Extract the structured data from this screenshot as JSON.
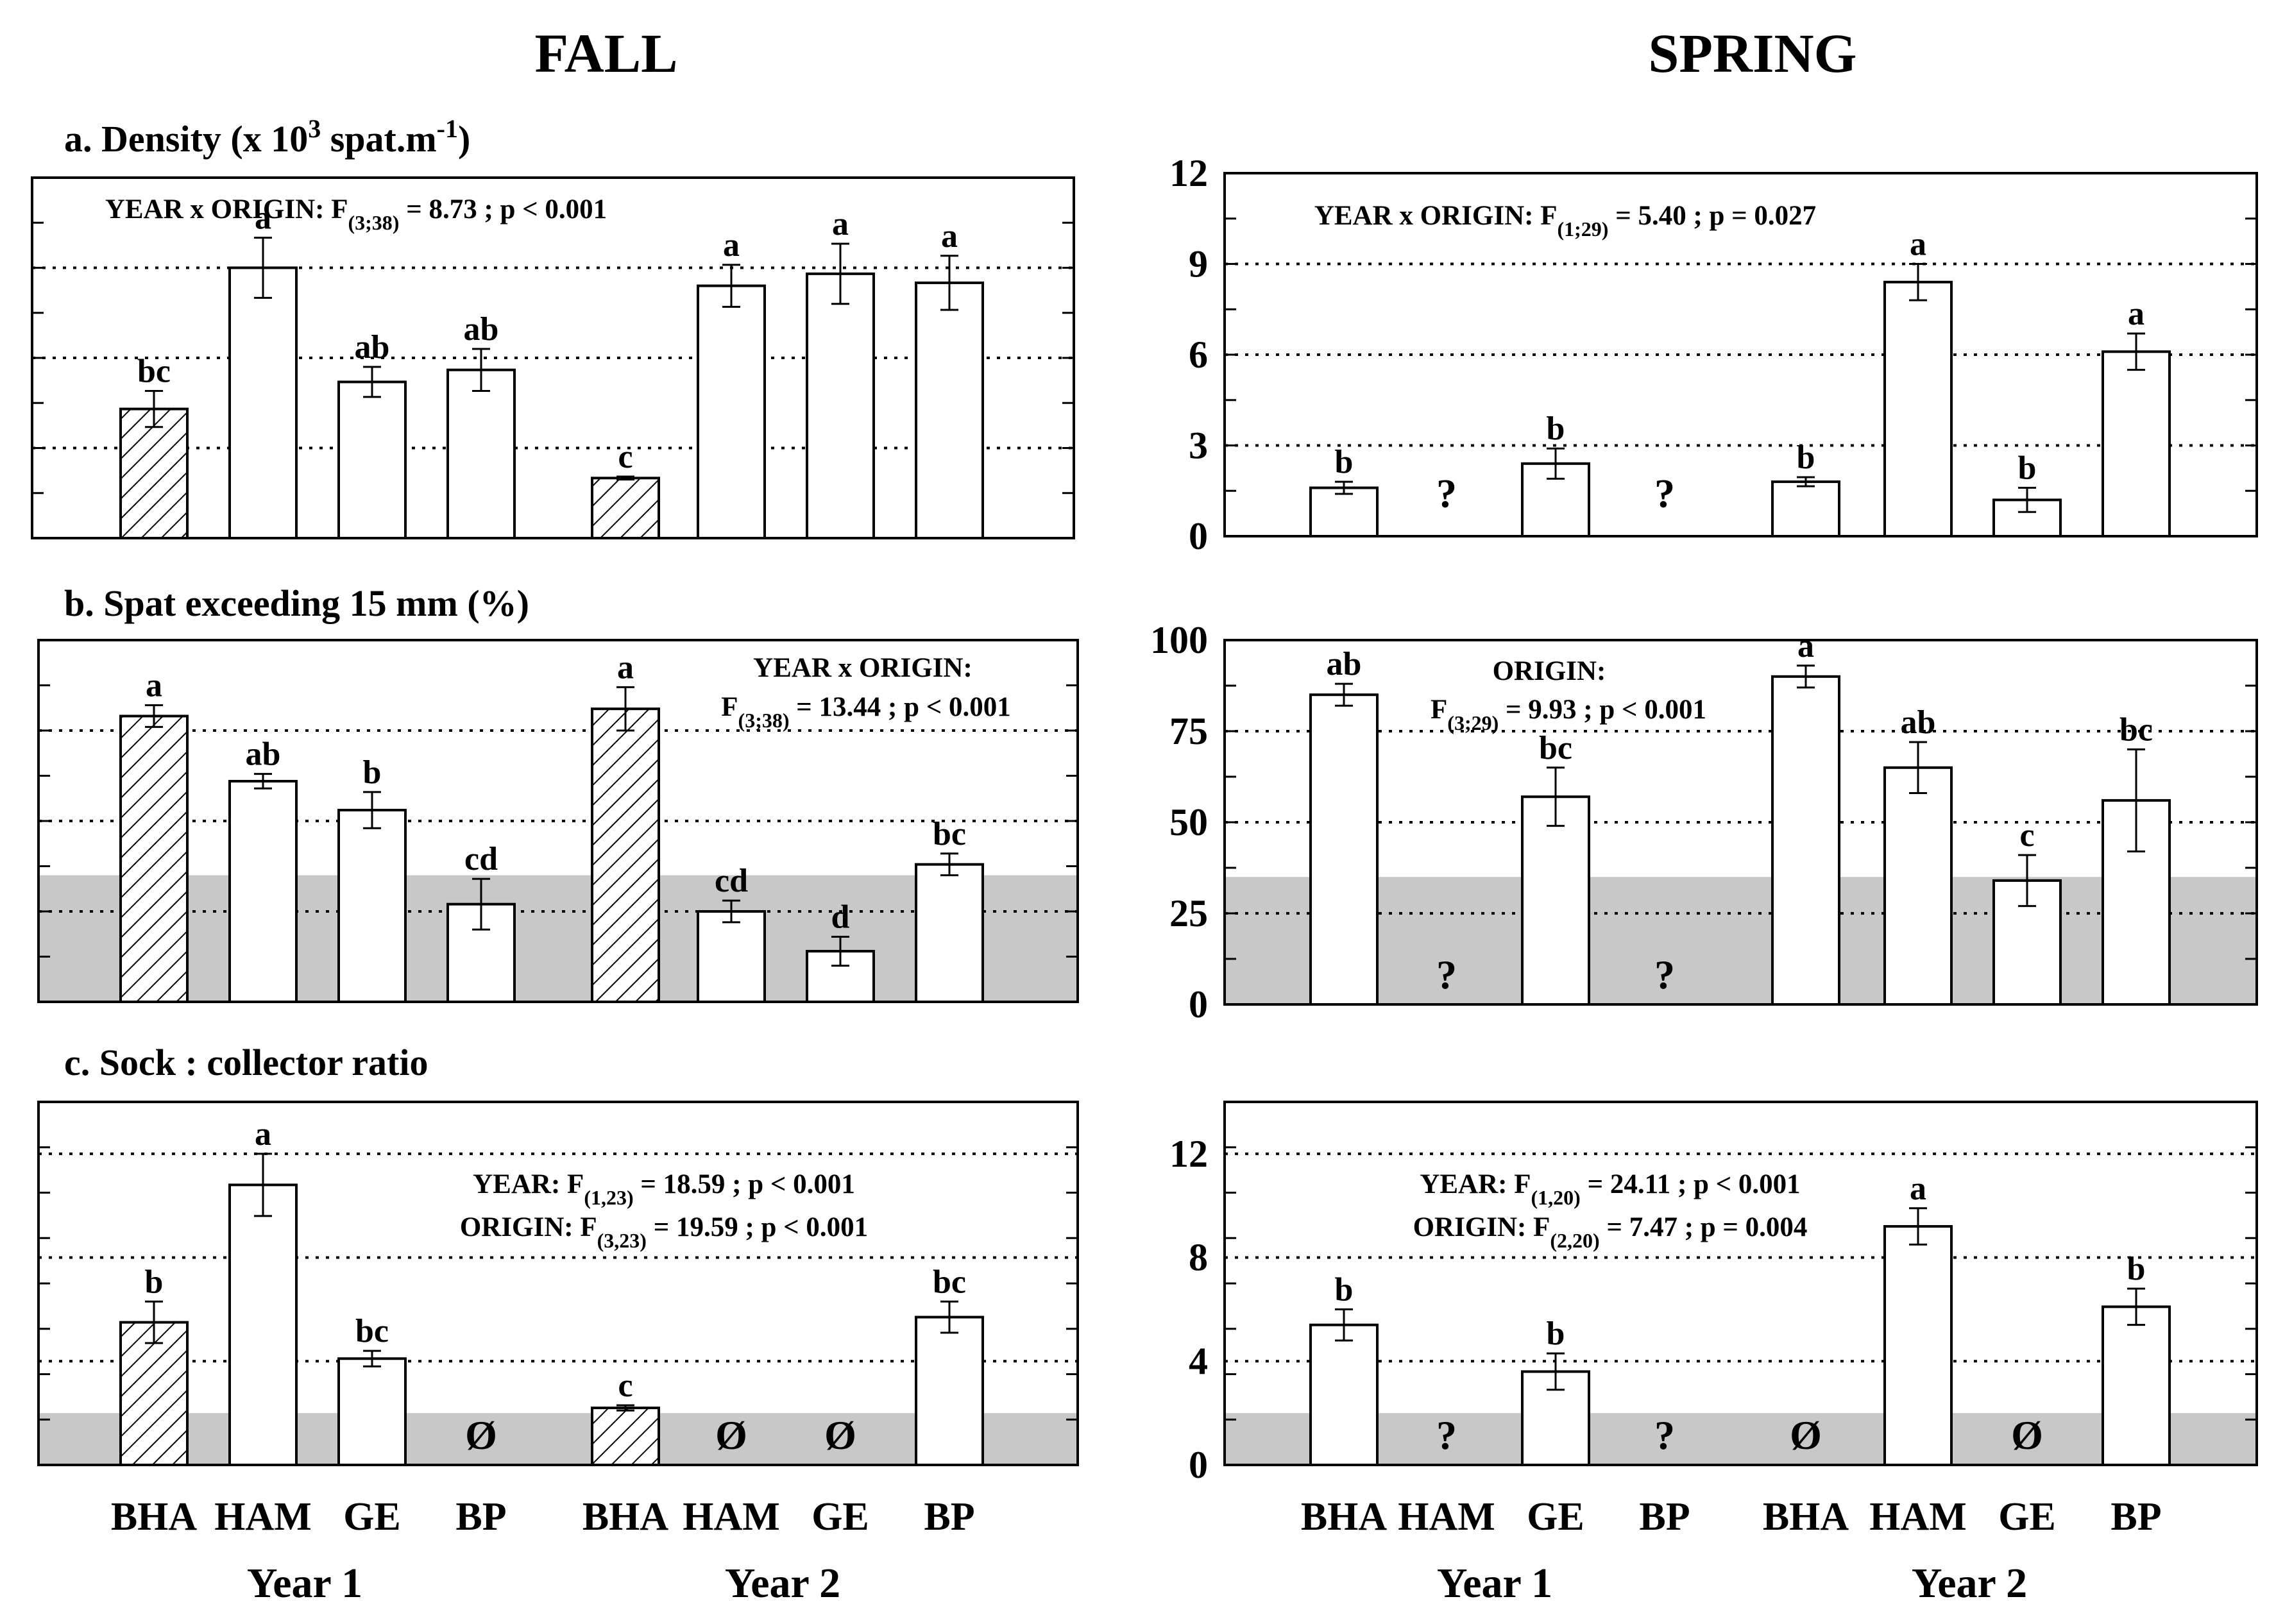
{
  "column_titles": {
    "fall": "FALL",
    "spring": "SPRING"
  },
  "row_titles": {
    "a": {
      "main": "a. Density (x 10",
      "sup": "3",
      "mid": " spat.m",
      "sup2": "-1",
      "end": ")"
    },
    "b": "b. Spat exceeding 15 mm (%)",
    "c": "c. Sock : collector ratio"
  },
  "x_labels": {
    "sites": [
      "BHA",
      "HAM",
      "GE",
      "BP",
      "BHA",
      "HAM",
      "GE",
      "BP"
    ],
    "years": [
      "Year 1",
      "Year 2"
    ]
  },
  "symbols": {
    "missing": "?",
    "null": "Ø"
  },
  "colors": {
    "band": "#c8c8c8",
    "bar_fill": "#ffffff",
    "ink": "#000000"
  },
  "chart_data": [
    {
      "id": "a_fall",
      "type": "bar",
      "row": "a",
      "season": "FALL",
      "ylim": [
        0,
        12
      ],
      "grid": [
        3,
        6,
        9
      ],
      "yticks": [],
      "band": null,
      "categories": [
        "BHA",
        "HAM",
        "GE",
        "BP",
        "BHA",
        "HAM",
        "GE",
        "BP"
      ],
      "values": [
        4.3,
        9.0,
        5.2,
        5.6,
        2.0,
        8.4,
        8.8,
        8.5
      ],
      "errors": [
        0.6,
        1.0,
        0.5,
        0.7,
        0.05,
        0.7,
        1.0,
        0.9
      ],
      "hatched": [
        true,
        false,
        false,
        false,
        true,
        false,
        false,
        false
      ],
      "letters": [
        "bc",
        "a",
        "ab",
        "ab",
        "c",
        "a",
        "a",
        "a"
      ],
      "markers": [
        null,
        null,
        null,
        null,
        null,
        null,
        null,
        null
      ],
      "stats": [
        {
          "text": "YEAR x  ORIGIN:   F",
          "sub": "(3;38)",
          "rest": " = 8.73 ;  p < 0.001"
        }
      ]
    },
    {
      "id": "a_spring",
      "type": "bar",
      "row": "a",
      "season": "SPRING",
      "ylim": [
        0,
        12
      ],
      "grid": [
        3,
        6,
        9
      ],
      "yticks": [
        0,
        3,
        6,
        9,
        12
      ],
      "band": null,
      "categories": [
        "BHA",
        "HAM",
        "GE",
        "BP",
        "BHA",
        "HAM",
        "GE",
        "BP"
      ],
      "values": [
        1.6,
        null,
        2.4,
        null,
        1.8,
        8.4,
        1.2,
        6.1
      ],
      "errors": [
        0.2,
        null,
        0.5,
        null,
        0.15,
        0.6,
        0.4,
        0.6
      ],
      "hatched": [
        false,
        false,
        false,
        false,
        false,
        false,
        false,
        false
      ],
      "letters": [
        "b",
        "",
        "b",
        "",
        "b",
        "a",
        "b",
        "a"
      ],
      "markers": [
        null,
        "?",
        null,
        "?",
        null,
        null,
        null,
        null
      ],
      "stats": [
        {
          "text": "YEAR x  ORIGIN:   F",
          "sub": "(1;29)",
          "rest": " = 5.40 ;  p = 0.027"
        }
      ]
    },
    {
      "id": "b_fall",
      "type": "bar",
      "row": "b",
      "season": "FALL",
      "ylim": [
        0,
        100
      ],
      "grid": [
        25,
        50,
        75
      ],
      "yticks": [],
      "band": 35,
      "categories": [
        "BHA",
        "HAM",
        "GE",
        "BP",
        "BHA",
        "HAM",
        "GE",
        "BP"
      ],
      "values": [
        79,
        61,
        53,
        27,
        81,
        25,
        14,
        38
      ],
      "errors": [
        3,
        2,
        5,
        7,
        6,
        3,
        4,
        3
      ],
      "hatched": [
        true,
        false,
        false,
        false,
        true,
        false,
        false,
        false
      ],
      "letters": [
        "a",
        "ab",
        "b",
        "cd",
        "a",
        "cd",
        "d",
        "bc"
      ],
      "markers": [
        null,
        null,
        null,
        null,
        null,
        null,
        null,
        null
      ],
      "stats": [
        {
          "text": "YEAR x  ORIGIN:",
          "sub": "",
          "rest": ""
        },
        {
          "text": "F",
          "sub": "(3;38)",
          "rest": " = 13.44 ;  p < 0.001"
        }
      ]
    },
    {
      "id": "b_spring",
      "type": "bar",
      "row": "b",
      "season": "SPRING",
      "ylim": [
        0,
        100
      ],
      "grid": [
        25,
        50,
        75
      ],
      "yticks": [
        0,
        25,
        50,
        75,
        100
      ],
      "band": 35,
      "categories": [
        "BHA",
        "HAM",
        "GE",
        "BP",
        "BHA",
        "HAM",
        "GE",
        "BP"
      ],
      "values": [
        85,
        null,
        57,
        null,
        90,
        65,
        34,
        56
      ],
      "errors": [
        3,
        null,
        8,
        null,
        3,
        7,
        7,
        14
      ],
      "hatched": [
        false,
        false,
        false,
        false,
        false,
        false,
        false,
        false
      ],
      "letters": [
        "ab",
        "",
        "bc",
        "",
        "a",
        "ab",
        "c",
        "bc"
      ],
      "markers": [
        null,
        "?",
        null,
        "?",
        null,
        null,
        null,
        null
      ],
      "stats": [
        {
          "text": "ORIGIN:",
          "sub": "",
          "rest": ""
        },
        {
          "text": "F",
          "sub": "(3;29)",
          "rest": " = 9.93 ;  p < 0.001"
        }
      ]
    },
    {
      "id": "c_fall",
      "type": "bar",
      "row": "c",
      "season": "FALL",
      "ylim": [
        0,
        14
      ],
      "grid": [
        4,
        8,
        12
      ],
      "yticks": [],
      "band": 2,
      "categories": [
        "BHA",
        "HAM",
        "GE",
        "BP",
        "BHA",
        "HAM",
        "GE",
        "BP"
      ],
      "values": [
        5.5,
        10.8,
        4.1,
        null,
        2.2,
        null,
        null,
        5.7
      ],
      "errors": [
        0.8,
        1.2,
        0.3,
        null,
        0.1,
        null,
        null,
        0.6
      ],
      "hatched": [
        true,
        false,
        false,
        false,
        true,
        false,
        false,
        false
      ],
      "letters": [
        "b",
        "a",
        "bc",
        "",
        "c",
        "",
        "",
        "bc"
      ],
      "markers": [
        null,
        null,
        null,
        "Ø",
        null,
        "Ø",
        "Ø",
        null
      ],
      "stats": [
        {
          "text": "YEAR:   F",
          "sub": "(1,23)",
          "rest": " =  18.59 ;  p < 0.001"
        },
        {
          "text": "ORIGIN:   F",
          "sub": "(3,23)",
          "rest": " =  19.59 ;  p < 0.001"
        }
      ]
    },
    {
      "id": "c_spring",
      "type": "bar",
      "row": "c",
      "season": "SPRING",
      "ylim": [
        0,
        14
      ],
      "grid": [
        4,
        8,
        12
      ],
      "yticks": [
        0,
        4,
        8,
        12
      ],
      "band": 2,
      "categories": [
        "BHA",
        "HAM",
        "GE",
        "BP",
        "BHA",
        "HAM",
        "GE",
        "BP"
      ],
      "values": [
        5.4,
        null,
        3.6,
        null,
        null,
        9.2,
        null,
        6.1
      ],
      "errors": [
        0.6,
        null,
        0.7,
        null,
        null,
        0.7,
        null,
        0.7
      ],
      "hatched": [
        false,
        false,
        false,
        false,
        false,
        false,
        false,
        false
      ],
      "letters": [
        "b",
        "",
        "b",
        "",
        "",
        "a",
        "",
        "b"
      ],
      "markers": [
        null,
        "?",
        null,
        "?",
        "Ø",
        null,
        "Ø",
        null
      ],
      "stats": [
        {
          "text": "YEAR:   F",
          "sub": "(1,20)",
          "rest": " =  24.11 ;  p < 0.001"
        },
        {
          "text": "ORIGIN:   F",
          "sub": "(2,20)",
          "rest": " =   7.47 ;  p = 0.004"
        }
      ]
    }
  ]
}
